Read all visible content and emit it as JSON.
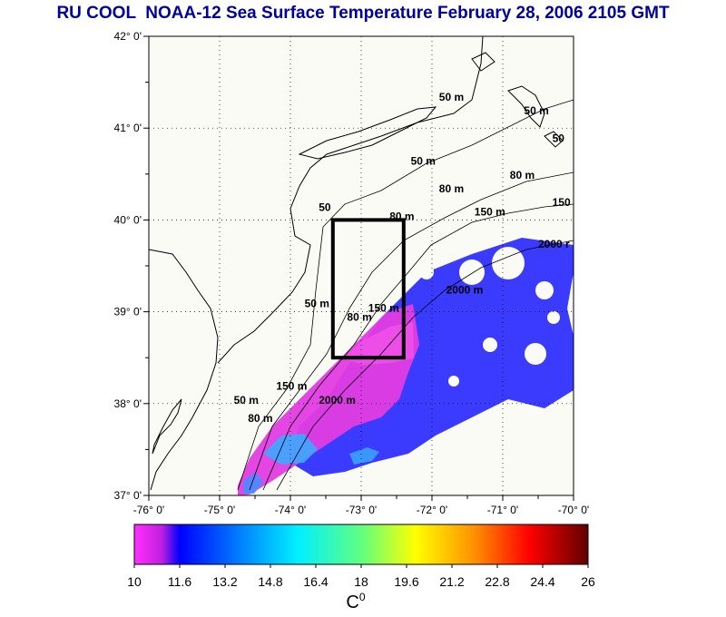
{
  "title": "RU COOL  NOAA-12 Sea Surface Temperature February 28, 2006 2105 GMT",
  "map": {
    "lat_ticks": [
      "42° 0'",
      "41° 0'",
      "40° 0'",
      "39° 0'",
      "38° 0'",
      "37° 0'"
    ],
    "lon_ticks": [
      "-76° 0'",
      "-75° 0'",
      "-74° 0'",
      "-73° 0'",
      "-72° 0'",
      "-71° 0'",
      "-70° 0'"
    ],
    "lat_range": [
      37,
      42
    ],
    "lon_range": [
      -76,
      -70
    ],
    "study_box": {
      "lon_min": -73.4,
      "lon_max": -72.4,
      "lat_min": 38.5,
      "lat_max": 40.0
    },
    "isobath_labels": [
      {
        "text": "50 m",
        "lon": -71.9,
        "lat": 41.3
      },
      {
        "text": "50 m",
        "lon": -70.7,
        "lat": 41.15
      },
      {
        "text": "50",
        "lon": -70.3,
        "lat": 40.85
      },
      {
        "text": "50 m",
        "lon": -72.3,
        "lat": 40.6
      },
      {
        "text": "80 m",
        "lon": -71.9,
        "lat": 40.3
      },
      {
        "text": "80 m",
        "lon": -70.9,
        "lat": 40.45
      },
      {
        "text": "150 m",
        "lon": -71.4,
        "lat": 40.05
      },
      {
        "text": "150",
        "lon": -70.3,
        "lat": 40.15
      },
      {
        "text": "80 m",
        "lon": -72.6,
        "lat": 40.0
      },
      {
        "text": "50",
        "lon": -73.6,
        "lat": 40.1
      },
      {
        "text": "2000 r",
        "lon": -70.5,
        "lat": 39.7
      },
      {
        "text": "150 m",
        "lon": -72.9,
        "lat": 39.0
      },
      {
        "text": "2000 m",
        "lon": -71.8,
        "lat": 39.2
      },
      {
        "text": "50 m",
        "lon": -73.8,
        "lat": 39.05
      },
      {
        "text": "80 m",
        "lon": -73.2,
        "lat": 38.9
      },
      {
        "text": "50 m",
        "lon": -74.8,
        "lat": 38.0
      },
      {
        "text": "150 m",
        "lon": -74.2,
        "lat": 38.15
      },
      {
        "text": "2000 m",
        "lon": -73.6,
        "lat": 38.0
      },
      {
        "text": "80 m",
        "lon": -74.6,
        "lat": 37.8
      }
    ]
  },
  "colorbar": {
    "ticks": [
      "10",
      "11.6",
      "13.2",
      "14.8",
      "16.4",
      "18",
      "19.6",
      "21.2",
      "22.8",
      "24.4",
      "26"
    ],
    "min": 10,
    "max": 26,
    "unit": "C",
    "unit_sup": "0"
  },
  "colors": {
    "title": "#0000a0",
    "ocean": "#fbfbf6",
    "sst_warm": "#e040e0",
    "sst_cool": "#2020ff",
    "sst_cyan": "#30b0ff"
  }
}
